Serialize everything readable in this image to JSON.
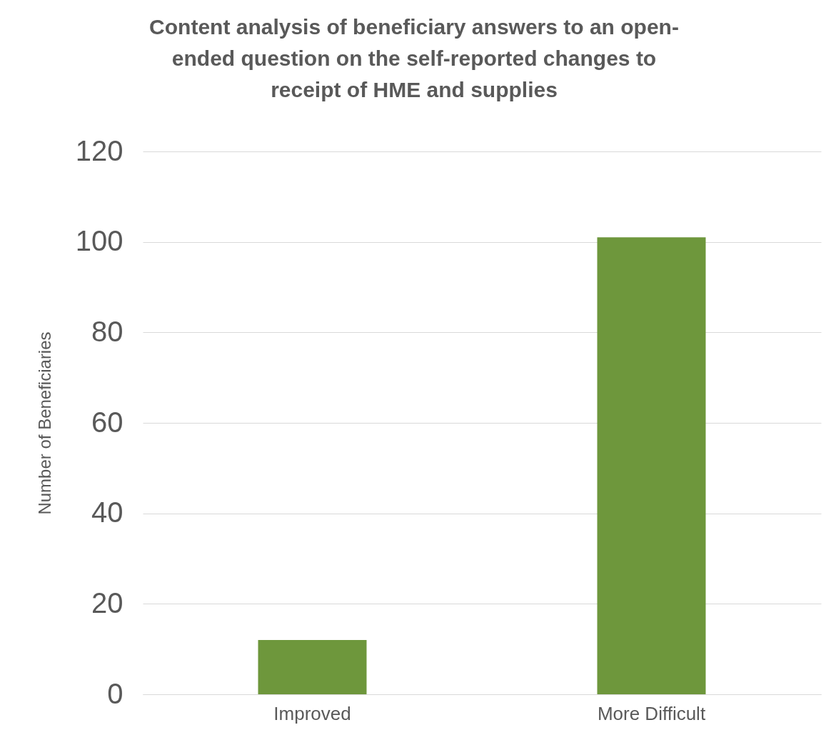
{
  "chart_data": {
    "type": "bar",
    "title": "Content analysis of beneficiary answers to an open-ended question on the self-reported changes to receipt of HME and supplies",
    "ylabel": "Number of Beneficiaries",
    "categories": [
      "Improved",
      "More Difficult"
    ],
    "values": [
      12,
      101
    ],
    "color": "#6e973c",
    "ylim": [
      0,
      120
    ],
    "yticks": [
      0,
      20,
      40,
      60,
      80,
      100,
      120
    ],
    "grid": "y"
  }
}
